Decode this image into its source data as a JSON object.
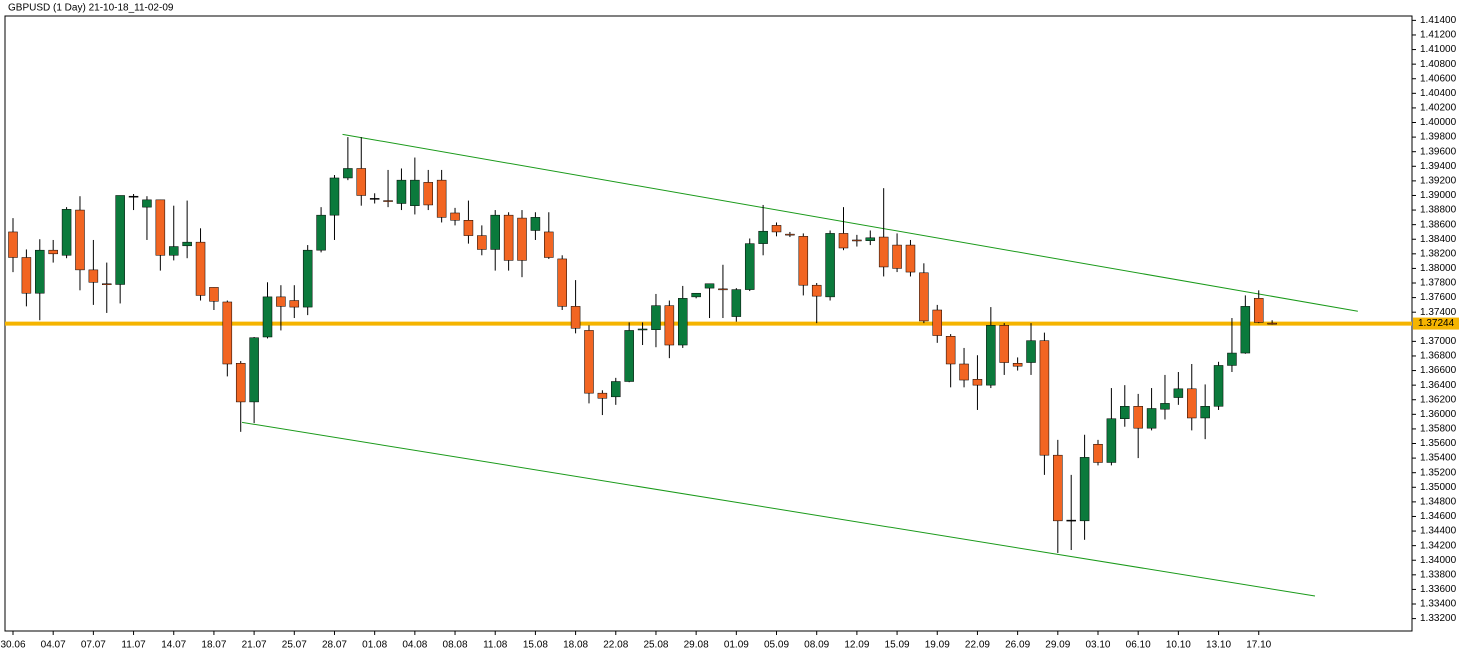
{
  "chart_data": {
    "type": "candlestick",
    "title": "GBPUSD (1 Day) 21-10-18_11-02-09",
    "up_color": "#0b7a3c",
    "down_color": "#f26522",
    "wick_color": "#000000",
    "categories": [
      "30.06",
      null,
      null,
      "04.07",
      null,
      null,
      "07.07",
      null,
      null,
      "11.07",
      null,
      null,
      "14.07",
      null,
      null,
      "18.07",
      null,
      null,
      "21.07",
      null,
      null,
      "25.07",
      null,
      null,
      "28.07",
      null,
      null,
      "01.08",
      null,
      null,
      "04.08",
      null,
      null,
      "08.08",
      null,
      null,
      "11.08",
      null,
      null,
      "15.08",
      null,
      null,
      "18.08",
      null,
      null,
      "22.08",
      null,
      null,
      "25.08",
      null,
      null,
      "29.08",
      null,
      null,
      "01.09",
      null,
      null,
      "05.09",
      null,
      null,
      "08.09",
      null,
      null,
      "12.09",
      null,
      null,
      "15.09",
      null,
      null,
      "19.09",
      null,
      null,
      "22.09",
      null,
      null,
      "26.09",
      null,
      null,
      "29.09",
      null,
      null,
      "03.10",
      null,
      null,
      "06.10",
      null,
      null,
      "10.10",
      null,
      null,
      "13.10",
      null,
      null,
      "17.10",
      null
    ],
    "open": [
      1.385,
      1.3815,
      1.3766,
      1.3825,
      1.3818,
      1.388,
      1.3798,
      1.3779,
      1.3778,
      1.3899,
      1.3884,
      1.3894,
      1.3818,
      1.3831,
      1.3836,
      1.3774,
      1.3754,
      1.367,
      1.3617,
      1.3706,
      1.3761,
      1.3756,
      1.3747,
      1.3825,
      1.3873,
      1.3924,
      1.3937,
      1.3896,
      1.3893,
      1.3889,
      1.3886,
      1.3918,
      1.3921,
      1.3876,
      1.3866,
      1.3845,
      1.3826,
      1.3873,
      1.3869,
      1.3852,
      1.385,
      1.3813,
      1.3748,
      1.3715,
      1.3629,
      1.3624,
      1.3645,
      1.3716,
      1.3716,
      1.3749,
      1.3695,
      1.3761,
      1.3773,
      1.3772,
      1.3734,
      1.3771,
      1.3834,
      1.3859,
      1.3847,
      1.3844,
      1.3777,
      1.3761,
      1.3848,
      1.3839,
      1.3838,
      1.3843,
      1.3832,
      1.3832,
      1.3794,
      1.3743,
      1.3707,
      1.3669,
      1.3648,
      1.364,
      1.3722,
      1.367,
      1.3671,
      1.3701,
      1.3544,
      1.3455,
      1.3454,
      1.3559,
      1.3534,
      1.3594,
      1.3611,
      1.3581,
      1.3607,
      1.3623,
      1.3635,
      1.3595,
      1.3611,
      1.3667,
      1.3684,
      1.3759,
      1.3725
    ],
    "high": [
      1.3869,
      1.3826,
      1.384,
      1.3839,
      1.3884,
      1.3899,
      1.3839,
      1.3808,
      1.39,
      1.3902,
      1.3899,
      1.3894,
      1.3886,
      1.3893,
      1.3855,
      1.3774,
      1.3756,
      1.3673,
      1.3706,
      1.3781,
      1.3777,
      1.3777,
      1.3832,
      1.3884,
      1.3928,
      1.398,
      1.398,
      1.3903,
      1.3935,
      1.3937,
      1.3952,
      1.3935,
      1.3935,
      1.3883,
      1.3893,
      1.3859,
      1.388,
      1.3877,
      1.388,
      1.3877,
      1.3877,
      1.3818,
      1.3784,
      1.3722,
      1.3633,
      1.365,
      1.3726,
      1.3726,
      1.3765,
      1.3756,
      1.3776,
      1.3766,
      1.3779,
      1.3805,
      1.3773,
      1.3841,
      1.3887,
      1.3863,
      1.385,
      1.3848,
      1.378,
      1.3852,
      1.3884,
      1.3846,
      1.3852,
      1.391,
      1.3848,
      1.3839,
      1.3807,
      1.375,
      1.371,
      1.3691,
      1.3681,
      1.3747,
      1.3725,
      1.3678,
      1.3725,
      1.3712,
      1.3565,
      1.3517,
      1.3572,
      1.3565,
      1.3636,
      1.364,
      1.3628,
      1.3636,
      1.3654,
      1.3658,
      1.3669,
      1.3641,
      1.3672,
      1.3732,
      1.3763,
      1.377,
      1.3729
    ],
    "low": [
      1.3795,
      1.3748,
      1.3729,
      1.3808,
      1.3814,
      1.377,
      1.375,
      1.3739,
      1.3752,
      1.388,
      1.3839,
      1.3797,
      1.3811,
      1.3814,
      1.3756,
      1.3743,
      1.3652,
      1.3576,
      1.3588,
      1.3704,
      1.3715,
      1.3732,
      1.3736,
      1.3822,
      1.3839,
      1.3921,
      1.3886,
      1.3889,
      1.3884,
      1.388,
      1.3874,
      1.388,
      1.3863,
      1.3859,
      1.3834,
      1.3818,
      1.3797,
      1.3797,
      1.3788,
      1.3839,
      1.3813,
      1.3743,
      1.3711,
      1.3615,
      1.3599,
      1.3613,
      1.3644,
      1.3695,
      1.3692,
      1.3677,
      1.3691,
      1.3759,
      1.3732,
      1.3732,
      1.3727,
      1.3769,
      1.3818,
      1.3844,
      1.3843,
      1.3763,
      1.3725,
      1.3756,
      1.3825,
      1.383,
      1.3832,
      1.3789,
      1.3795,
      1.3789,
      1.3725,
      1.3698,
      1.3637,
      1.3637,
      1.3606,
      1.3636,
      1.3654,
      1.366,
      1.3654,
      1.3517,
      1.341,
      1.3414,
      1.3428,
      1.353,
      1.353,
      1.3583,
      1.354,
      1.3578,
      1.3593,
      1.3613,
      1.3578,
      1.3566,
      1.3606,
      1.3658,
      1.3683,
      1.3725,
      1.3723
    ],
    "close": [
      1.3815,
      1.3766,
      1.3825,
      1.382,
      1.3881,
      1.3798,
      1.3781,
      1.3778,
      1.39,
      1.3899,
      1.3894,
      1.3818,
      1.383,
      1.3836,
      1.3763,
      1.3755,
      1.3669,
      1.3617,
      1.3705,
      1.3761,
      1.3748,
      1.3747,
      1.3825,
      1.3873,
      1.3924,
      1.3937,
      1.39,
      1.3896,
      1.3892,
      1.3921,
      1.3921,
      1.3887,
      1.387,
      1.3866,
      1.3845,
      1.3826,
      1.3873,
      1.3811,
      1.3811,
      1.387,
      1.3815,
      1.3748,
      1.3718,
      1.3629,
      1.3622,
      1.3645,
      1.3715,
      1.3717,
      1.3749,
      1.3695,
      1.3759,
      1.3766,
      1.3779,
      1.3771,
      1.3771,
      1.3834,
      1.3851,
      1.385,
      1.3846,
      1.3777,
      1.3762,
      1.3848,
      1.3828,
      1.3838,
      1.3842,
      1.3802,
      1.38,
      1.3795,
      1.3728,
      1.3708,
      1.3669,
      1.3647,
      1.364,
      1.3722,
      1.3671,
      1.3666,
      1.3701,
      1.3544,
      1.3454,
      1.3455,
      1.3541,
      1.3534,
      1.3594,
      1.3611,
      1.3581,
      1.3608,
      1.3615,
      1.3635,
      1.3595,
      1.3611,
      1.3667,
      1.3684,
      1.3748,
      1.3726,
      1.37244
    ],
    "ylim": [
      1.3303,
      1.4146
    ],
    "yticks": [
      {
        "value": 1.414,
        "label": "1.41400"
      },
      {
        "value": 1.412,
        "label": "1.41200"
      },
      {
        "value": 1.41,
        "label": "1.41000"
      },
      {
        "value": 1.408,
        "label": "1.40800"
      },
      {
        "value": 1.406,
        "label": "1.40600"
      },
      {
        "value": 1.404,
        "label": "1.40400"
      },
      {
        "value": 1.402,
        "label": "1.40200"
      },
      {
        "value": 1.4,
        "label": "1.40000"
      },
      {
        "value": 1.398,
        "label": "1.39800"
      },
      {
        "value": 1.396,
        "label": "1.39600"
      },
      {
        "value": 1.394,
        "label": "1.39400"
      },
      {
        "value": 1.392,
        "label": "1.39200"
      },
      {
        "value": 1.39,
        "label": "1.39000"
      },
      {
        "value": 1.388,
        "label": "1.38800"
      },
      {
        "value": 1.386,
        "label": "1.38600"
      },
      {
        "value": 1.384,
        "label": "1.38400"
      },
      {
        "value": 1.382,
        "label": "1.38200"
      },
      {
        "value": 1.38,
        "label": "1.38000"
      },
      {
        "value": 1.378,
        "label": "1.37800"
      },
      {
        "value": 1.376,
        "label": "1.37600"
      },
      {
        "value": 1.374,
        "label": "1.37400"
      },
      {
        "value": 1.37,
        "label": "1.37000"
      },
      {
        "value": 1.368,
        "label": "1.36800"
      },
      {
        "value": 1.366,
        "label": "1.36600"
      },
      {
        "value": 1.364,
        "label": "1.36400"
      },
      {
        "value": 1.362,
        "label": "1.36200"
      },
      {
        "value": 1.36,
        "label": "1.36000"
      },
      {
        "value": 1.358,
        "label": "1.35800"
      },
      {
        "value": 1.356,
        "label": "1.35600"
      },
      {
        "value": 1.354,
        "label": "1.35400"
      },
      {
        "value": 1.352,
        "label": "1.35200"
      },
      {
        "value": 1.35,
        "label": "1.35000"
      },
      {
        "value": 1.348,
        "label": "1.34800"
      },
      {
        "value": 1.346,
        "label": "1.34600"
      },
      {
        "value": 1.344,
        "label": "1.34400"
      },
      {
        "value": 1.342,
        "label": "1.34200"
      },
      {
        "value": 1.34,
        "label": "1.34000"
      },
      {
        "value": 1.338,
        "label": "1.33800"
      },
      {
        "value": 1.336,
        "label": "1.33600"
      },
      {
        "value": 1.334,
        "label": "1.33400"
      },
      {
        "value": 1.332,
        "label": "1.33200"
      }
    ],
    "last_price": {
      "value": 1.37244,
      "label": "1.37244"
    },
    "last_price_color": "#f5b400",
    "trendlines": [
      {
        "color": "#1a9a1a",
        "x": [
          24.6,
          100.4
        ],
        "y": [
          1.39838,
          1.37413
        ]
      },
      {
        "color": "#1a9a1a",
        "x": [
          17.1,
          97.2
        ],
        "y": [
          1.3589,
          1.3351
        ]
      }
    ]
  }
}
